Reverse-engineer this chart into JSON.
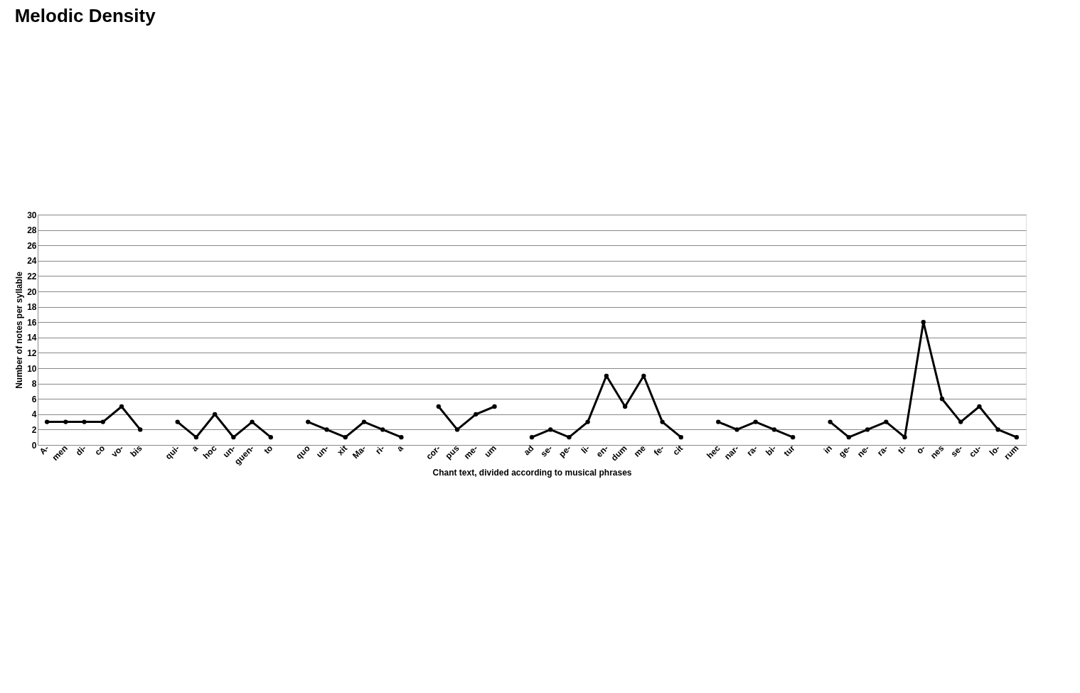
{
  "chart_data": {
    "type": "line",
    "title": "Melodic Density",
    "xlabel": "Chant text, divided according to musical phrases",
    "ylabel": "Number of notes per syllable",
    "categories": [
      "A-",
      "men",
      "di-",
      "co",
      "vo-",
      "bis",
      null,
      "qui-",
      "a",
      "hoc",
      "un-",
      "guen-",
      "to",
      null,
      "quo",
      "un-",
      "xit",
      "Ma-",
      "ri-",
      "a",
      null,
      "cor-",
      "pus",
      "me-",
      "um",
      null,
      "ad",
      "se-",
      "pe-",
      "li-",
      "en-",
      "dum",
      "me",
      "fe-",
      "cit",
      null,
      "hec",
      "nar-",
      "ra-",
      "bi-",
      "tur",
      null,
      "in",
      "ge-",
      "ne-",
      "ra-",
      "ti-",
      "o-",
      "nes",
      "se-",
      "cu-",
      "lo-",
      "rum"
    ],
    "series": [
      {
        "color": "#000000",
        "values": [
          3,
          3,
          3,
          3,
          5,
          2,
          null,
          3,
          1,
          4,
          1,
          3,
          1,
          null,
          3,
          2,
          1,
          3,
          2,
          1,
          null,
          5,
          2,
          4,
          5,
          null,
          1,
          2,
          1,
          3,
          9,
          5,
          9,
          3,
          1,
          null,
          3,
          2,
          3,
          2,
          1,
          null,
          3,
          1,
          2,
          3,
          1,
          16,
          6,
          3,
          5,
          2,
          1
        ]
      }
    ],
    "ylim": [
      0,
      30
    ],
    "yticks": [
      0,
      2,
      4,
      6,
      8,
      10,
      12,
      14,
      16,
      18,
      20,
      22,
      24,
      26,
      28,
      30
    ],
    "grid": "y",
    "marker": "circle",
    "line_style": "solid"
  }
}
